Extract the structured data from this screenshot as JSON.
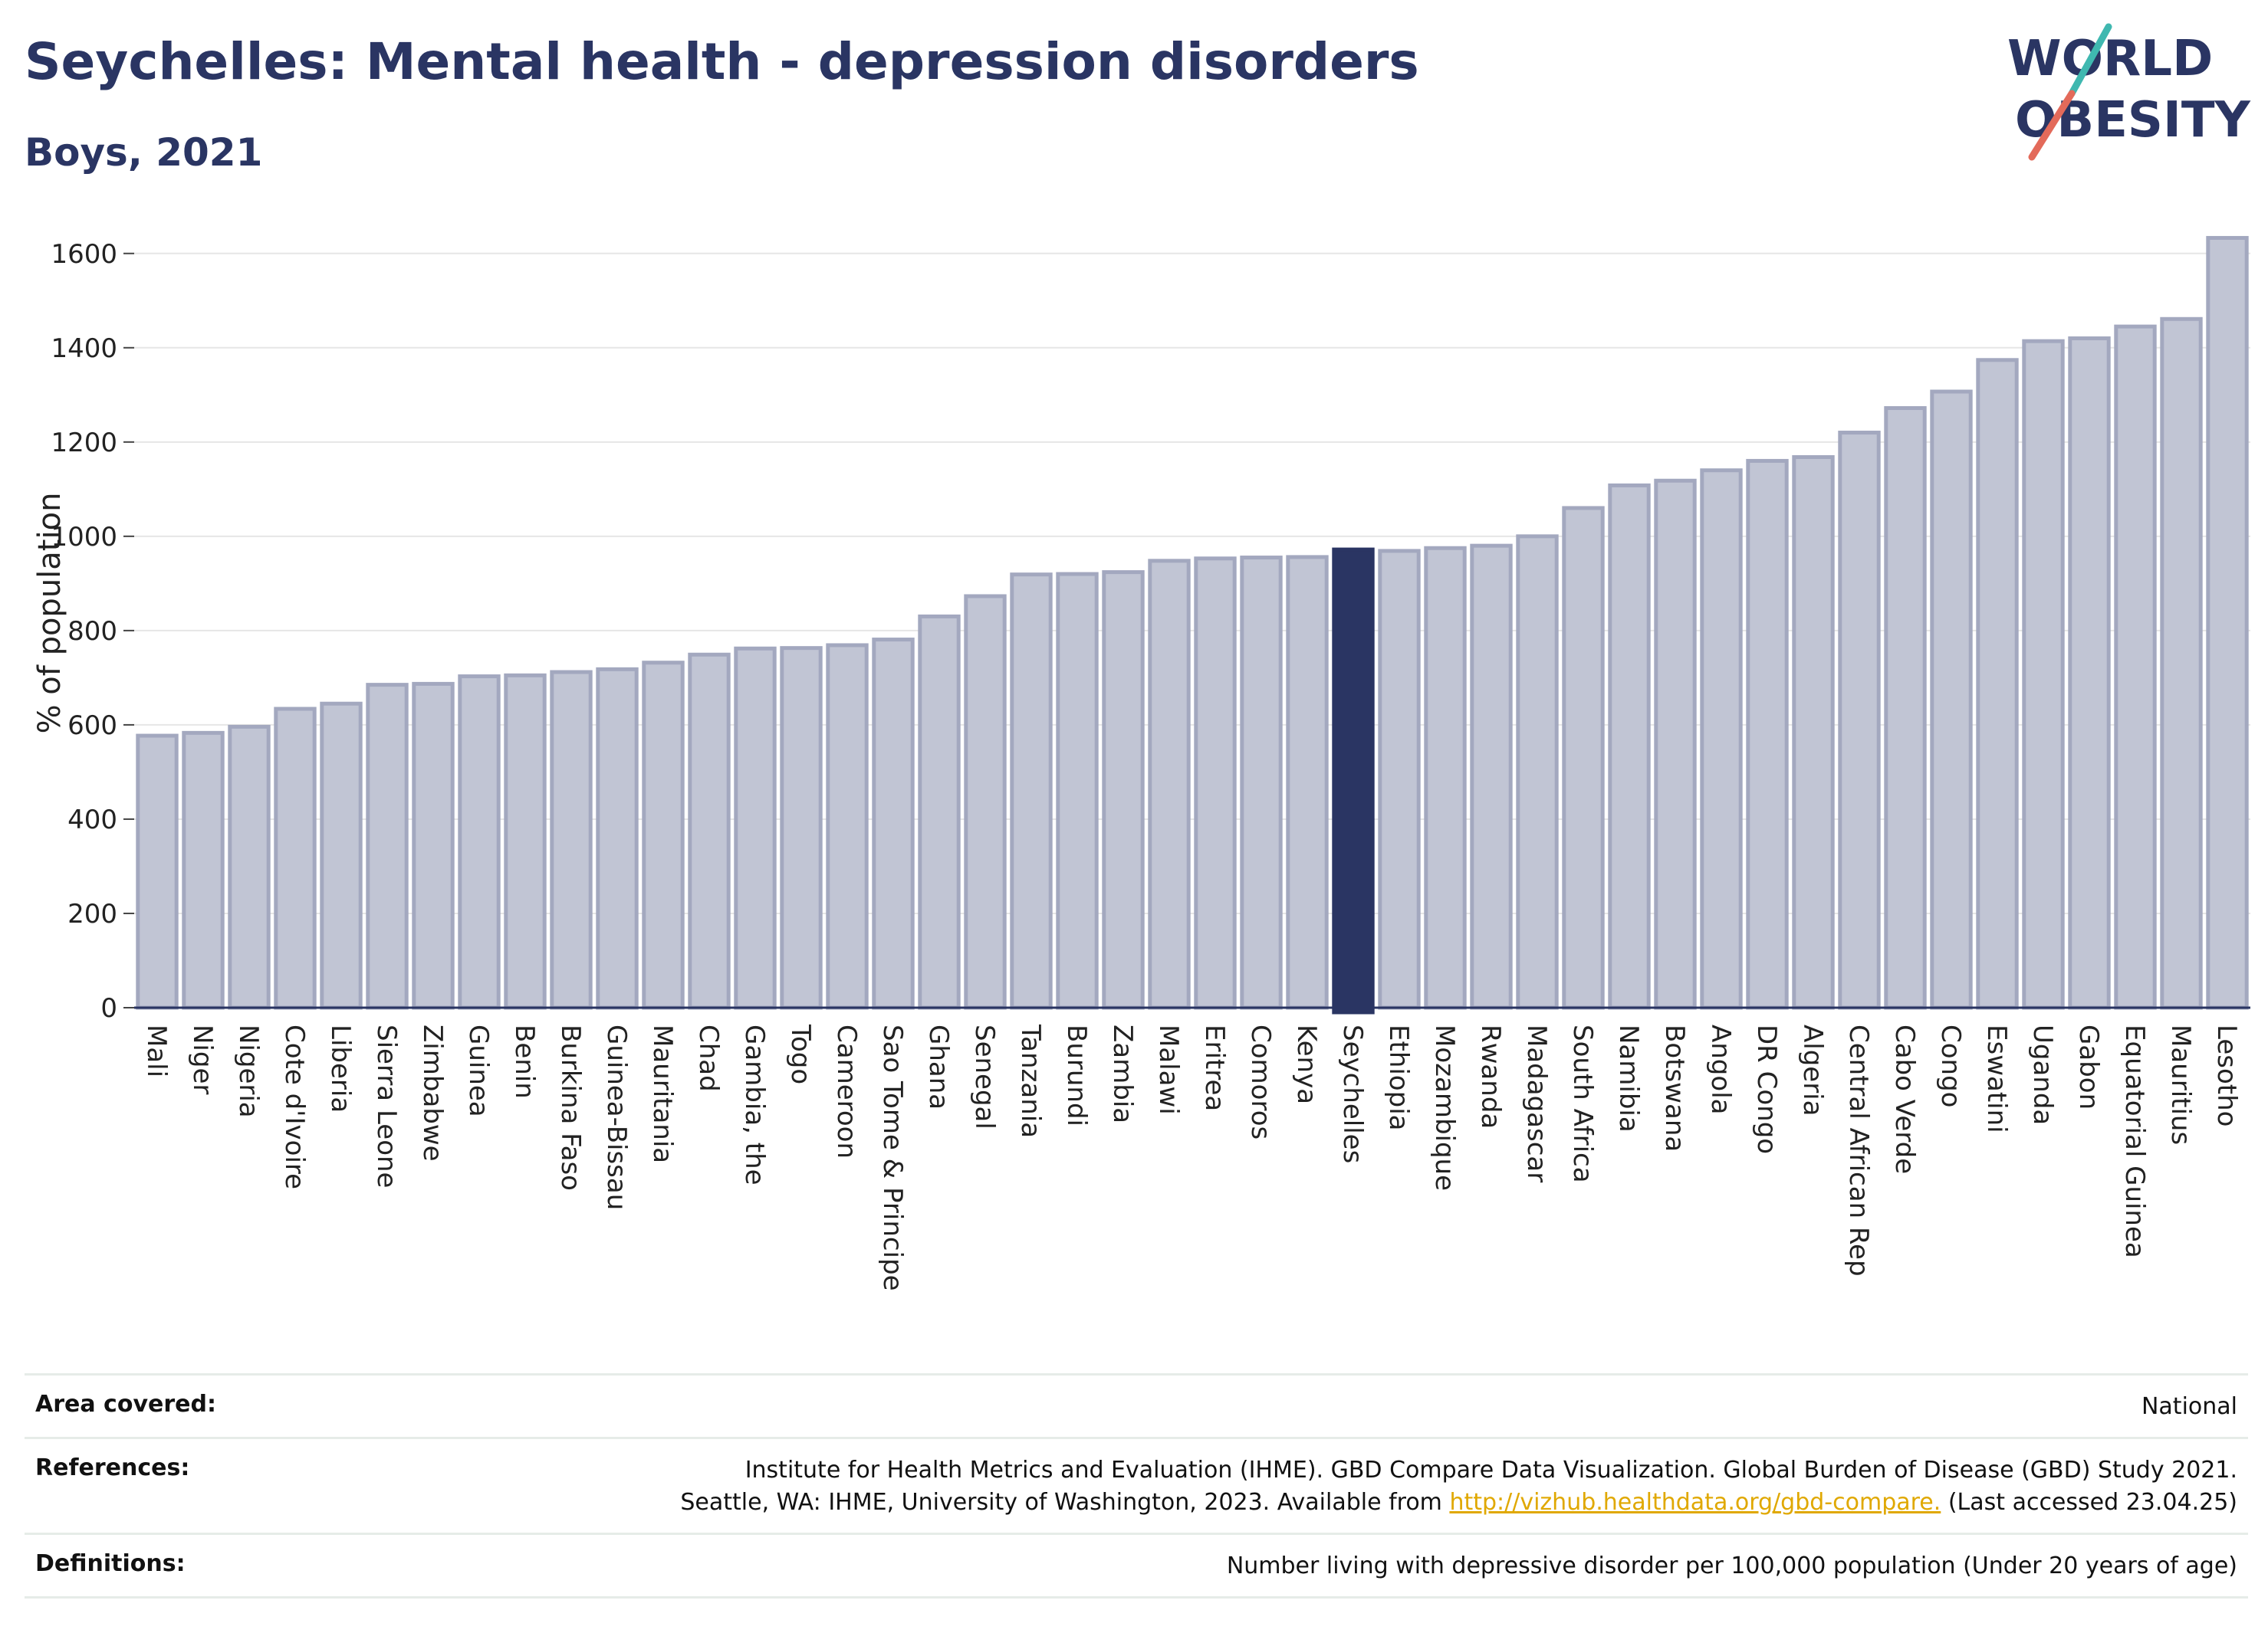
{
  "header": {
    "title": "Seychelles: Mental health - depression disorders",
    "subtitle": "Boys, 2021"
  },
  "logo": {
    "line1": "WORLD",
    "line2": "OBESITY",
    "colors": {
      "text": "#2a3563",
      "slash_teal": "#3fb8b0",
      "slash_coral": "#e36a5a"
    }
  },
  "chart_data": {
    "type": "bar",
    "title": "Seychelles: Mental health - depression disorders",
    "subtitle": "Boys, 2021",
    "ylabel": "% of population",
    "xlabel": "",
    "ylim": [
      0,
      1650
    ],
    "yticks": [
      0,
      200,
      400,
      600,
      800,
      1000,
      1200,
      1400,
      1600
    ],
    "grid": true,
    "highlight": "Seychelles",
    "colors": {
      "bar": "#c1c5d4",
      "bar_border": "#a3a8bf",
      "highlight": "#2a3563"
    },
    "categories": [
      "Mali",
      "Niger",
      "Nigeria",
      "Cote d'Ivoire",
      "Liberia",
      "Sierra Leone",
      "Zimbabwe",
      "Guinea",
      "Benin",
      "Burkina Faso",
      "Guinea-Bissau",
      "Mauritania",
      "Chad",
      "Gambia, the",
      "Togo",
      "Cameroon",
      "Sao Tome & Principe",
      "Ghana",
      "Senegal",
      "Tanzania",
      "Burundi",
      "Zambia",
      "Malawi",
      "Eritrea",
      "Comoros",
      "Kenya",
      "Seychelles",
      "Ethiopia",
      "Mozambique",
      "Rwanda",
      "Madagascar",
      "South Africa",
      "Namibia",
      "Botswana",
      "Angola",
      "DR Congo",
      "Algeria",
      "Central African Rep",
      "Cabo Verde",
      "Congo",
      "Eswatini",
      "Uganda",
      "Gabon",
      "Equatorial Guinea",
      "Mauritius",
      "Lesotho"
    ],
    "values": [
      577,
      583,
      596,
      634,
      645,
      685,
      687,
      703,
      705,
      712,
      718,
      732,
      749,
      762,
      763,
      769,
      781,
      830,
      873,
      919,
      920,
      924,
      948,
      953,
      955,
      956,
      972,
      969,
      975,
      980,
      1000,
      1060,
      1108,
      1118,
      1140,
      1160,
      1168,
      1220,
      1272,
      1307,
      1374,
      1414,
      1420,
      1445,
      1461,
      1633
    ]
  },
  "info": {
    "rows": [
      {
        "label": "Area covered:",
        "value_lines": [
          "National"
        ]
      },
      {
        "label": "References:",
        "value_lines": [
          "Institute for Health Metrics and Evaluation (IHME). GBD Compare Data Visualization. Global Burden of Disease (GBD) Study 2021."
        ],
        "line2_prefix": "Seattle, WA: IHME, University of Washington, 2023. Available from ",
        "link": "http://vizhub.healthdata.org/gbd-compare.",
        "line2_suffix": " (Last accessed 23.04.25)"
      },
      {
        "label": "Definitions:",
        "value_lines": [
          "Number living with depressive disorder per 100,000 population (Under 20 years of age)"
        ]
      }
    ]
  }
}
